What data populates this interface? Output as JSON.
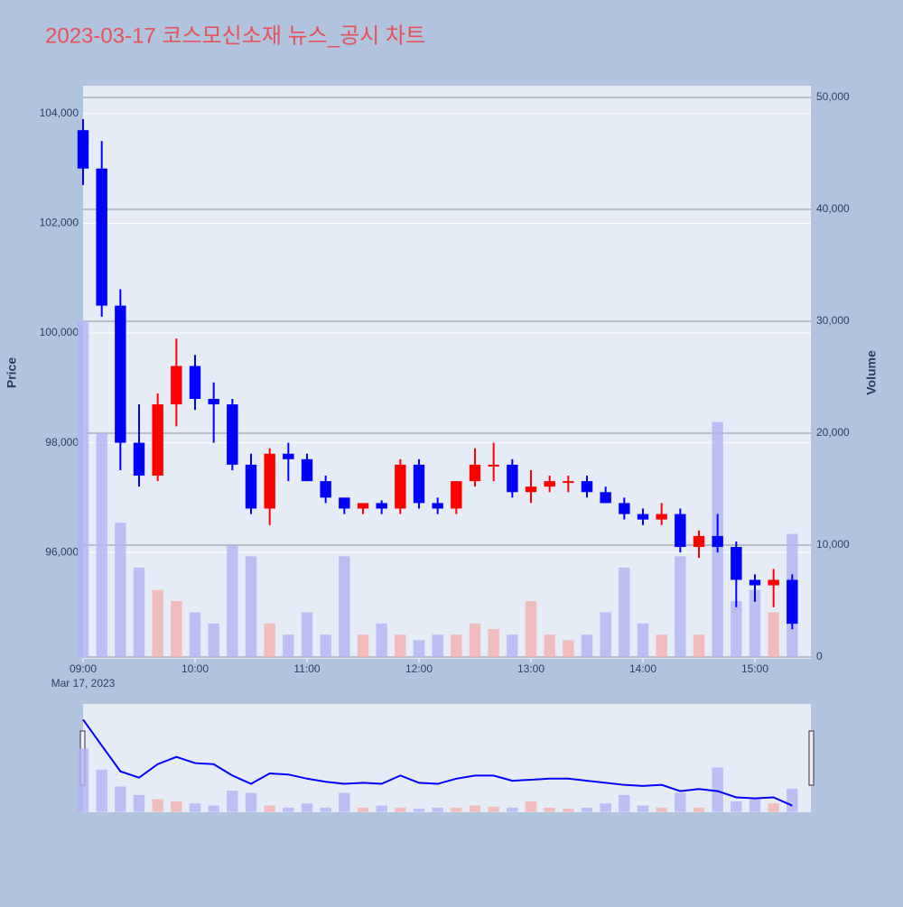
{
  "chart_data": {
    "type": "candlestick",
    "title": "2023-03-17 코스모신소재 뉴스_공시 차트",
    "x": [
      "09:00",
      "09:10",
      "09:20",
      "09:30",
      "09:40",
      "09:50",
      "10:00",
      "10:10",
      "10:20",
      "10:30",
      "10:40",
      "10:50",
      "11:00",
      "11:10",
      "11:20",
      "11:30",
      "11:40",
      "11:50",
      "12:00",
      "12:10",
      "12:20",
      "12:30",
      "12:40",
      "12:50",
      "13:00",
      "13:10",
      "13:20",
      "13:30",
      "13:40",
      "13:50",
      "14:00",
      "14:10",
      "14:20",
      "14:30",
      "14:40",
      "14:50",
      "15:00",
      "15:10",
      "15:20"
    ],
    "open": [
      103700,
      103000,
      100500,
      98000,
      97400,
      98700,
      99400,
      98800,
      98700,
      97600,
      96800,
      97800,
      97700,
      97300,
      97000,
      96800,
      96900,
      96800,
      97600,
      96900,
      96800,
      97300,
      97600,
      97600,
      97100,
      97200,
      97300,
      97300,
      97100,
      96900,
      96700,
      96600,
      96700,
      96100,
      96300,
      96100,
      95500,
      95400,
      95500
    ],
    "high": [
      103900,
      103500,
      100800,
      98700,
      98900,
      99900,
      99600,
      99100,
      98800,
      97800,
      97900,
      98000,
      97800,
      97400,
      97000,
      96900,
      96950,
      97700,
      97700,
      97000,
      97300,
      97900,
      98000,
      97700,
      97500,
      97400,
      97400,
      97400,
      97200,
      97000,
      96800,
      96900,
      96800,
      96400,
      96700,
      96200,
      95600,
      95700,
      95600
    ],
    "low": [
      102700,
      100300,
      97500,
      97200,
      97300,
      98300,
      98600,
      98000,
      97500,
      96700,
      96500,
      97300,
      97300,
      96900,
      96700,
      96700,
      96700,
      96700,
      96800,
      96700,
      96700,
      97200,
      97300,
      97000,
      96900,
      97100,
      97100,
      97000,
      96900,
      96600,
      96500,
      96500,
      96000,
      95900,
      96000,
      95000,
      95100,
      95000,
      94600
    ],
    "close": [
      103000,
      100500,
      98000,
      97400,
      98700,
      99400,
      98800,
      98700,
      97600,
      96800,
      97800,
      97700,
      97300,
      97000,
      96800,
      96900,
      96800,
      97600,
      96900,
      96800,
      97300,
      97600,
      97600,
      97100,
      97200,
      97300,
      97300,
      97100,
      96900,
      96700,
      96600,
      96700,
      96100,
      96300,
      96100,
      95500,
      95400,
      95500,
      94700
    ],
    "volume": [
      30000,
      20000,
      12000,
      8000,
      6000,
      5000,
      4000,
      3000,
      10000,
      9000,
      3000,
      2000,
      4000,
      2000,
      9000,
      2000,
      3000,
      2000,
      1500,
      2000,
      2000,
      3000,
      2500,
      2000,
      5000,
      2000,
      1500,
      2000,
      4000,
      8000,
      3000,
      2000,
      9000,
      2000,
      21000,
      5000,
      6000,
      4000,
      11000
    ],
    "increasing_color": "#ff0000",
    "decreasing_color": "#0000ff",
    "volume_increasing_color": "#f4b0b0",
    "volume_decreasing_color": "#b0b4f4",
    "xlim": [
      "09:00",
      "15:30"
    ],
    "xticks": [
      "09:00",
      "10:00",
      "11:00",
      "12:00",
      "13:00",
      "14:00",
      "15:00"
    ],
    "x_date_label": "Mar 17, 2023",
    "ylim": [
      94060,
      104510
    ],
    "yticks": [
      {
        "value": 96000,
        "label": "96,000"
      },
      {
        "value": 98000,
        "label": "98,000"
      },
      {
        "value": 100000,
        "label": "100,000"
      },
      {
        "value": 102000,
        "label": "102,000"
      },
      {
        "value": 104000,
        "label": "104,000"
      }
    ],
    "y_label": "Price",
    "y2lim": [
      -160,
      51050
    ],
    "y2ticks": [
      0,
      {
        "value": 10000,
        "label": "10,000"
      },
      {
        "value": 20000,
        "label": "20,000"
      },
      {
        "value": 30000,
        "label": "30,000"
      },
      {
        "value": 40000,
        "label": "40,000"
      },
      {
        "value": 50000,
        "label": "50,000"
      }
    ],
    "y2_label": "Volume"
  }
}
